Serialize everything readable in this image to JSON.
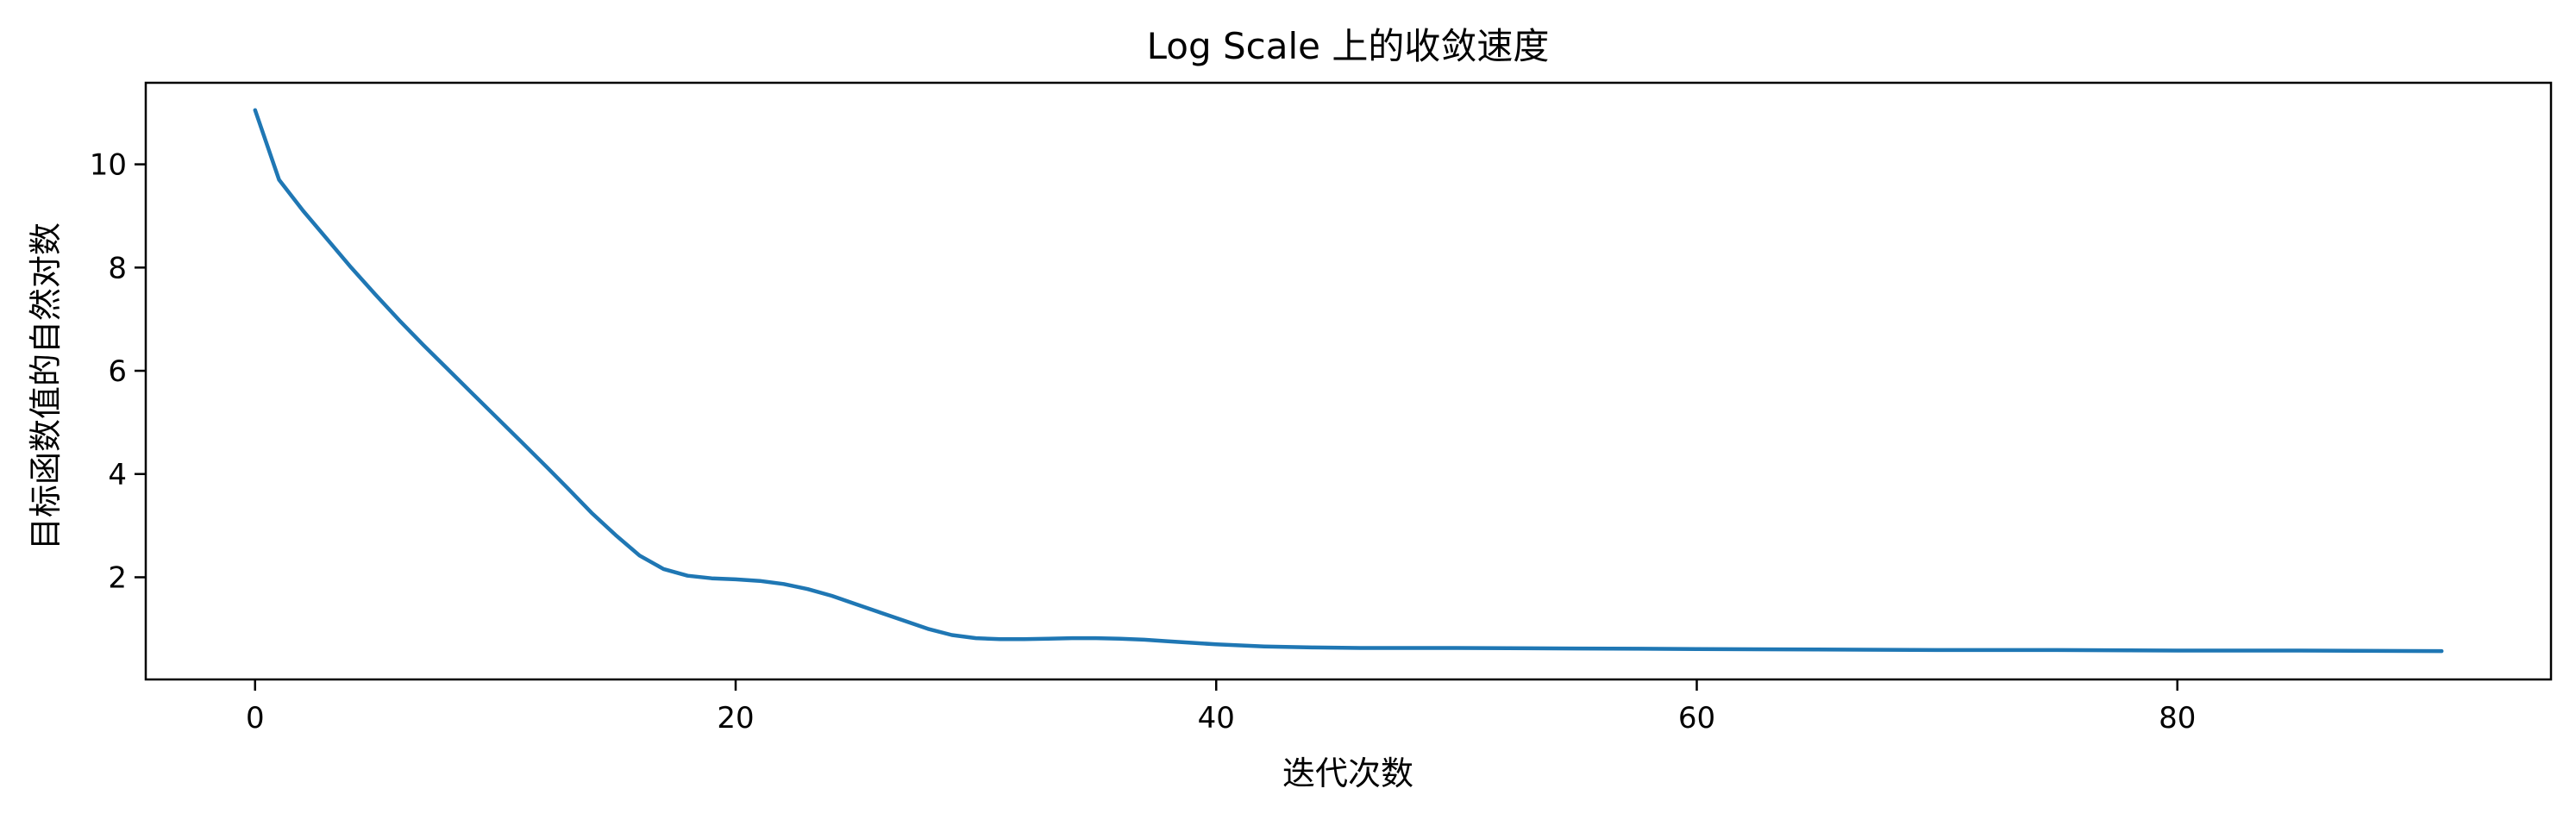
{
  "chart_data": {
    "type": "line",
    "title": "Log Scale 上的收敛速度",
    "xlabel": "迭代次数",
    "ylabel": "目标函数值的自然对数",
    "xlim": [
      -4.55,
      95.55
    ],
    "ylim": [
      0.02,
      11.58
    ],
    "xticks": [
      0,
      20,
      40,
      60,
      80
    ],
    "yticks": [
      2,
      4,
      6,
      8,
      10
    ],
    "grid": false,
    "line_color": "#1f77b4",
    "series": [
      {
        "x": [
          0,
          1,
          2,
          3,
          4,
          5,
          6,
          7,
          8,
          9,
          10,
          11,
          12,
          13,
          14,
          15,
          16,
          17,
          18,
          19,
          20,
          21,
          22,
          23,
          24,
          25,
          26,
          27,
          28,
          29,
          30,
          31,
          32,
          33,
          34,
          35,
          36,
          37,
          38,
          39,
          40,
          42,
          44,
          46,
          48,
          50,
          55,
          60,
          65,
          70,
          75,
          80,
          85,
          91
        ],
        "y": [
          11.05,
          9.7,
          9.1,
          8.55,
          8.0,
          7.48,
          6.98,
          6.5,
          6.04,
          5.58,
          5.12,
          4.66,
          4.2,
          3.73,
          3.25,
          2.82,
          2.42,
          2.16,
          2.03,
          1.98,
          1.96,
          1.93,
          1.87,
          1.77,
          1.64,
          1.48,
          1.32,
          1.16,
          1.0,
          0.88,
          0.82,
          0.8,
          0.8,
          0.81,
          0.82,
          0.82,
          0.81,
          0.79,
          0.76,
          0.73,
          0.7,
          0.66,
          0.64,
          0.63,
          0.63,
          0.63,
          0.62,
          0.61,
          0.6,
          0.59,
          0.59,
          0.58,
          0.58,
          0.57
        ]
      }
    ]
  }
}
